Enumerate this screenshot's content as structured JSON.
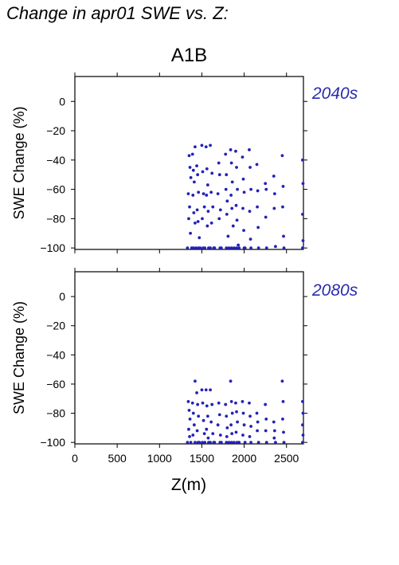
{
  "figure": {
    "title": "Change in apr01 SWE vs. Z:",
    "scenario": "A1B",
    "xlabel": "Z(m)"
  },
  "chart_data": [
    {
      "type": "scatter",
      "panel_label": "2040s",
      "ylabel": "SWE Change (%)",
      "xlim": [
        0,
        2700
      ],
      "ylim": [
        -101,
        17
      ],
      "x_ticks": [
        0,
        500,
        1000,
        1500,
        2000,
        2500
      ],
      "y_ticks": [
        0,
        -20,
        -40,
        -60,
        -80,
        -100
      ],
      "color": "#2323b5",
      "x_tick_labels_shown": false,
      "points": [
        [
          1350,
          -37
        ],
        [
          1360,
          -45
        ],
        [
          1370,
          -52
        ],
        [
          1340,
          -63
        ],
        [
          1355,
          -72
        ],
        [
          1345,
          -80
        ],
        [
          1365,
          -90
        ],
        [
          1330,
          -100
        ],
        [
          1380,
          -100
        ],
        [
          1390,
          -36
        ],
        [
          1400,
          -47
        ],
        [
          1410,
          -55
        ],
        [
          1395,
          -64
        ],
        [
          1405,
          -76
        ],
        [
          1420,
          -83
        ],
        [
          1400,
          -100
        ],
        [
          1430,
          -100
        ],
        [
          1420,
          -31
        ],
        [
          1440,
          -44
        ],
        [
          1450,
          -50
        ],
        [
          1460,
          -62
        ],
        [
          1445,
          -74
        ],
        [
          1455,
          -82
        ],
        [
          1470,
          -93
        ],
        [
          1460,
          -100
        ],
        [
          1480,
          -100
        ],
        [
          1500,
          -30
        ],
        [
          1510,
          -48
        ],
        [
          1520,
          -63
        ],
        [
          1530,
          -72
        ],
        [
          1505,
          -80
        ],
        [
          1515,
          -100
        ],
        [
          1535,
          -100
        ],
        [
          1550,
          -31
        ],
        [
          1560,
          -46
        ],
        [
          1570,
          -57
        ],
        [
          1555,
          -64
        ],
        [
          1575,
          -75
        ],
        [
          1565,
          -85
        ],
        [
          1580,
          -100
        ],
        [
          1600,
          -100
        ],
        [
          1600,
          -30
        ],
        [
          1620,
          -49
        ],
        [
          1610,
          -62
        ],
        [
          1630,
          -72
        ],
        [
          1615,
          -83
        ],
        [
          1640,
          -100
        ],
        [
          1650,
          -100
        ],
        [
          1700,
          -42
        ],
        [
          1710,
          -50
        ],
        [
          1690,
          -63
        ],
        [
          1720,
          -74
        ],
        [
          1705,
          -80
        ],
        [
          1715,
          -100
        ],
        [
          1730,
          -100
        ],
        [
          1780,
          -36
        ],
        [
          1790,
          -50
        ],
        [
          1785,
          -60
        ],
        [
          1800,
          -68
        ],
        [
          1795,
          -77
        ],
        [
          1810,
          -92
        ],
        [
          1790,
          -100
        ],
        [
          1820,
          -100
        ],
        [
          1840,
          -33
        ],
        [
          1850,
          -42
        ],
        [
          1860,
          -55
        ],
        [
          1845,
          -64
        ],
        [
          1855,
          -73
        ],
        [
          1870,
          -85
        ],
        [
          1850,
          -100
        ],
        [
          1880,
          -100
        ],
        [
          1900,
          -34
        ],
        [
          1910,
          -45
        ],
        [
          1920,
          -60
        ],
        [
          1905,
          -71
        ],
        [
          1915,
          -81
        ],
        [
          1930,
          -98
        ],
        [
          1910,
          -100
        ],
        [
          1940,
          -100
        ],
        [
          1980,
          -38
        ],
        [
          1990,
          -53
        ],
        [
          2000,
          -62
        ],
        [
          1985,
          -73
        ],
        [
          1995,
          -88
        ],
        [
          2010,
          -100
        ],
        [
          2000,
          -100
        ],
        [
          2060,
          -33
        ],
        [
          2070,
          -45
        ],
        [
          2080,
          -60
        ],
        [
          2065,
          -75
        ],
        [
          2075,
          -94
        ],
        [
          2080,
          -100
        ],
        [
          2150,
          -43
        ],
        [
          2160,
          -61
        ],
        [
          2155,
          -72
        ],
        [
          2165,
          -86
        ],
        [
          2170,
          -100
        ],
        [
          2250,
          -56
        ],
        [
          2260,
          -60
        ],
        [
          2255,
          -79
        ],
        [
          2265,
          -100
        ],
        [
          2350,
          -51
        ],
        [
          2360,
          -63
        ],
        [
          2355,
          -73
        ],
        [
          2370,
          -99
        ],
        [
          2450,
          -37
        ],
        [
          2460,
          -58
        ],
        [
          2455,
          -72
        ],
        [
          2465,
          -92
        ],
        [
          2470,
          -100
        ],
        [
          2690,
          -40
        ],
        [
          2695,
          -56
        ],
        [
          2690,
          -77
        ],
        [
          2695,
          -95
        ],
        [
          2690,
          -100
        ]
      ]
    },
    {
      "type": "scatter",
      "panel_label": "2080s",
      "ylabel": "SWE Change (%)",
      "xlim": [
        0,
        2700
      ],
      "ylim": [
        -101,
        17
      ],
      "x_ticks": [
        0,
        500,
        1000,
        1500,
        2000,
        2500
      ],
      "y_ticks": [
        0,
        -20,
        -40,
        -60,
        -80,
        -100
      ],
      "x_tick_labels": [
        "0",
        "500",
        "1000",
        "1500",
        "2000",
        "2500"
      ],
      "color": "#2323b5",
      "x_tick_labels_shown": true,
      "points": [
        [
          1340,
          -72
        ],
        [
          1350,
          -78
        ],
        [
          1360,
          -84
        ],
        [
          1345,
          -91
        ],
        [
          1355,
          -96
        ],
        [
          1330,
          -100
        ],
        [
          1370,
          -100
        ],
        [
          1390,
          -73
        ],
        [
          1400,
          -80
        ],
        [
          1410,
          -88
        ],
        [
          1395,
          -95
        ],
        [
          1420,
          -100
        ],
        [
          1420,
          -58
        ],
        [
          1440,
          -66
        ],
        [
          1450,
          -74
        ],
        [
          1460,
          -82
        ],
        [
          1445,
          -92
        ],
        [
          1455,
          -100
        ],
        [
          1470,
          -100
        ],
        [
          1500,
          -64
        ],
        [
          1510,
          -73
        ],
        [
          1520,
          -85
        ],
        [
          1530,
          -94
        ],
        [
          1505,
          -100
        ],
        [
          1535,
          -100
        ],
        [
          1550,
          -64
        ],
        [
          1560,
          -75
        ],
        [
          1570,
          -82
        ],
        [
          1555,
          -91
        ],
        [
          1575,
          -97
        ],
        [
          1580,
          -100
        ],
        [
          1600,
          -100
        ],
        [
          1600,
          -64
        ],
        [
          1620,
          -74
        ],
        [
          1610,
          -86
        ],
        [
          1630,
          -94
        ],
        [
          1640,
          -100
        ],
        [
          1650,
          -100
        ],
        [
          1700,
          -73
        ],
        [
          1710,
          -81
        ],
        [
          1690,
          -88
        ],
        [
          1720,
          -95
        ],
        [
          1715,
          -100
        ],
        [
          1730,
          -100
        ],
        [
          1780,
          -74
        ],
        [
          1790,
          -82
        ],
        [
          1800,
          -90
        ],
        [
          1795,
          -96
        ],
        [
          1790,
          -100
        ],
        [
          1820,
          -100
        ],
        [
          1840,
          -58
        ],
        [
          1850,
          -72
        ],
        [
          1860,
          -80
        ],
        [
          1845,
          -88
        ],
        [
          1855,
          -94
        ],
        [
          1850,
          -100
        ],
        [
          1880,
          -100
        ],
        [
          1900,
          -73
        ],
        [
          1910,
          -79
        ],
        [
          1920,
          -86
        ],
        [
          1905,
          -93
        ],
        [
          1915,
          -100
        ],
        [
          1940,
          -100
        ],
        [
          1980,
          -72
        ],
        [
          1990,
          -80
        ],
        [
          2000,
          -88
        ],
        [
          1985,
          -95
        ],
        [
          2010,
          -100
        ],
        [
          2060,
          -73
        ],
        [
          2070,
          -82
        ],
        [
          2080,
          -89
        ],
        [
          2065,
          -96
        ],
        [
          2080,
          -100
        ],
        [
          2150,
          -80
        ],
        [
          2160,
          -86
        ],
        [
          2155,
          -92
        ],
        [
          2170,
          -100
        ],
        [
          2250,
          -74
        ],
        [
          2260,
          -84
        ],
        [
          2255,
          -92
        ],
        [
          2265,
          -100
        ],
        [
          2350,
          -86
        ],
        [
          2360,
          -92
        ],
        [
          2355,
          -97
        ],
        [
          2370,
          -100
        ],
        [
          2450,
          -58
        ],
        [
          2460,
          -72
        ],
        [
          2455,
          -84
        ],
        [
          2465,
          -93
        ],
        [
          2470,
          -100
        ],
        [
          2690,
          -72
        ],
        [
          2695,
          -80
        ],
        [
          2690,
          -88
        ],
        [
          2695,
          -95
        ],
        [
          2690,
          -100
        ]
      ]
    }
  ]
}
